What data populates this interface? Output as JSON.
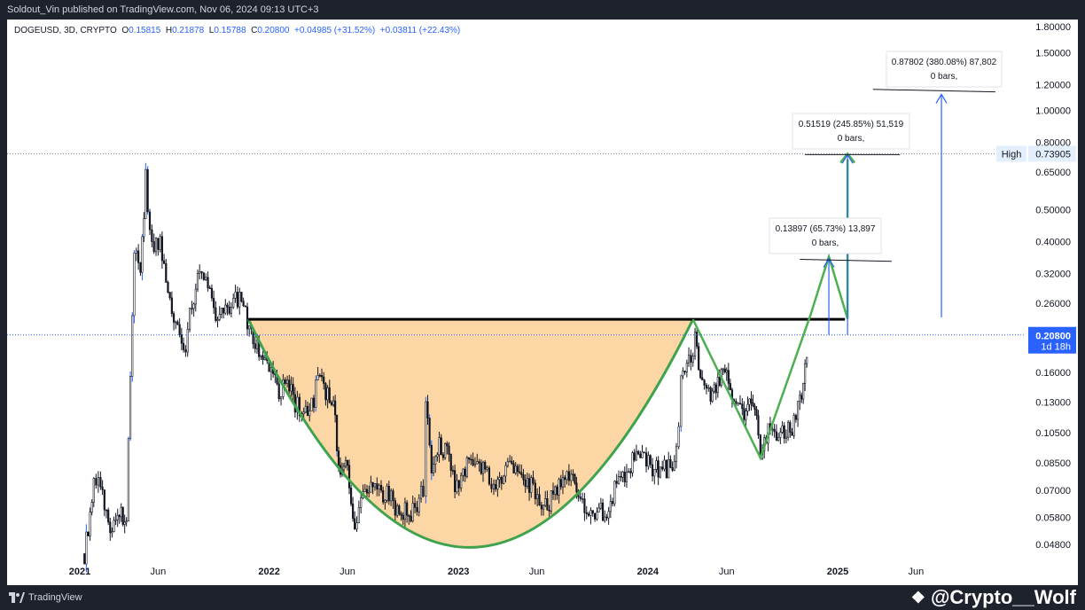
{
  "header": {
    "publish_line": "Soldout_Vin published on TradingView.com, Nov 06, 2024 09:13 UTC+3"
  },
  "legend": {
    "symbol": "DOGEUSD, 3D, CRYPTO",
    "open_label": "O",
    "open": "0.15815",
    "high_label": "H",
    "high": "0.21878",
    "low_label": "L",
    "low": "0.15788",
    "close_label": "C",
    "close": "0.20800",
    "change": "+0.04985 (+31.52%)",
    "change2": "+0.03811 (+22.43%)"
  },
  "footer": {
    "logo_text": "TradingView",
    "watermark": "@Crypto__Wolf"
  },
  "colors": {
    "candle": "#131722",
    "wick_blue": "#2962ff",
    "cup_fill": "#fccf95",
    "cup_line": "#3fa34d",
    "path_line": "#4caf50",
    "arrow_blue": "#2962ff",
    "resistance": "#000000",
    "price_tag": "#2962ff"
  },
  "chart_data": {
    "type": "candlestick",
    "symbol": "DOGEUSD",
    "timeframe": "3D",
    "y_scale": "log",
    "ylim": [
      0.042,
      1.9
    ],
    "y_ticks": [
      "1.80000",
      "1.50000",
      "1.20000",
      "1.00000",
      "0.80000",
      "0.65000",
      "0.50000",
      "0.40000",
      "0.32000",
      "0.26000",
      "0.20800",
      "0.16000",
      "0.13000",
      "0.10500",
      "0.08500",
      "0.07000",
      "0.05800",
      "0.04800"
    ],
    "y_tick_values": [
      1.8,
      1.5,
      1.2,
      1.0,
      0.8,
      0.65,
      0.5,
      0.4,
      0.32,
      0.26,
      0.208,
      0.16,
      0.13,
      0.105,
      0.085,
      0.07,
      0.058,
      0.048
    ],
    "x_ticks": [
      "2021",
      "Jun",
      "2022",
      "Jun",
      "2023",
      "Jun",
      "2024",
      "Jun",
      "2025",
      "Jun"
    ],
    "x_tick_dates": [
      "2021-01-01",
      "2021-06-01",
      "2022-01-01",
      "2022-06-01",
      "2023-01-01",
      "2023-06-01",
      "2024-01-01",
      "2024-06-01",
      "2025-01-01",
      "2025-06-01"
    ],
    "last_price": "0.20800",
    "countdown": "1d 18h",
    "high_label": "High",
    "high_value": "0.73905",
    "high_price": 0.73905,
    "resistance_price": 0.232,
    "cup_bottom_price": 0.047,
    "series_close": [
      [
        "2021-01-10",
        0.045
      ],
      [
        "2021-01-28",
        0.072
      ],
      [
        "2021-02-10",
        0.075
      ],
      [
        "2021-02-25",
        0.055
      ],
      [
        "2021-03-15",
        0.058
      ],
      [
        "2021-04-01",
        0.06
      ],
      [
        "2021-04-16",
        0.38
      ],
      [
        "2021-04-28",
        0.33
      ],
      [
        "2021-05-08",
        0.62
      ],
      [
        "2021-05-20",
        0.38
      ],
      [
        "2021-06-05",
        0.39
      ],
      [
        "2021-06-20",
        0.27
      ],
      [
        "2021-07-05",
        0.22
      ],
      [
        "2021-07-20",
        0.18
      ],
      [
        "2021-08-05",
        0.26
      ],
      [
        "2021-08-20",
        0.32
      ],
      [
        "2021-09-05",
        0.3
      ],
      [
        "2021-09-20",
        0.22
      ],
      [
        "2021-10-05",
        0.24
      ],
      [
        "2021-10-20",
        0.26
      ],
      [
        "2021-11-05",
        0.27
      ],
      [
        "2021-11-20",
        0.23
      ],
      [
        "2021-12-05",
        0.2
      ],
      [
        "2021-12-20",
        0.17
      ],
      [
        "2022-01-05",
        0.17
      ],
      [
        "2022-01-20",
        0.14
      ],
      [
        "2022-02-05",
        0.15
      ],
      [
        "2022-02-20",
        0.13
      ],
      [
        "2022-03-05",
        0.12
      ],
      [
        "2022-03-20",
        0.12
      ],
      [
        "2022-04-05",
        0.15
      ],
      [
        "2022-04-20",
        0.14
      ],
      [
        "2022-05-05",
        0.13
      ],
      [
        "2022-05-15",
        0.085
      ],
      [
        "2022-06-01",
        0.08
      ],
      [
        "2022-06-15",
        0.055
      ],
      [
        "2022-07-01",
        0.067
      ],
      [
        "2022-07-20",
        0.07
      ],
      [
        "2022-08-05",
        0.069
      ],
      [
        "2022-08-20",
        0.067
      ],
      [
        "2022-09-05",
        0.062
      ],
      [
        "2022-09-20",
        0.061
      ],
      [
        "2022-10-05",
        0.06
      ],
      [
        "2022-10-25",
        0.07
      ],
      [
        "2022-10-30",
        0.14
      ],
      [
        "2022-11-10",
        0.085
      ],
      [
        "2022-11-25",
        0.095
      ],
      [
        "2022-12-10",
        0.09
      ],
      [
        "2022-12-25",
        0.072
      ],
      [
        "2023-01-10",
        0.08
      ],
      [
        "2023-01-25",
        0.09
      ],
      [
        "2023-02-10",
        0.085
      ],
      [
        "2023-02-25",
        0.08
      ],
      [
        "2023-03-10",
        0.07
      ],
      [
        "2023-03-25",
        0.075
      ],
      [
        "2023-04-10",
        0.085
      ],
      [
        "2023-04-25",
        0.08
      ],
      [
        "2023-05-10",
        0.073
      ],
      [
        "2023-05-25",
        0.072
      ],
      [
        "2023-06-10",
        0.062
      ],
      [
        "2023-06-25",
        0.065
      ],
      [
        "2023-07-10",
        0.07
      ],
      [
        "2023-07-25",
        0.078
      ],
      [
        "2023-08-10",
        0.075
      ],
      [
        "2023-08-20",
        0.063
      ],
      [
        "2023-09-05",
        0.063
      ],
      [
        "2023-09-25",
        0.061
      ],
      [
        "2023-10-10",
        0.06
      ],
      [
        "2023-10-25",
        0.068
      ],
      [
        "2023-11-10",
        0.078
      ],
      [
        "2023-11-25",
        0.08
      ],
      [
        "2023-12-10",
        0.096
      ],
      [
        "2023-12-25",
        0.09
      ],
      [
        "2024-01-10",
        0.082
      ],
      [
        "2024-01-25",
        0.08
      ],
      [
        "2024-02-10",
        0.082
      ],
      [
        "2024-02-25",
        0.09
      ],
      [
        "2024-03-05",
        0.15
      ],
      [
        "2024-03-20",
        0.17
      ],
      [
        "2024-04-01",
        0.2
      ],
      [
        "2024-04-15",
        0.15
      ],
      [
        "2024-05-01",
        0.13
      ],
      [
        "2024-05-15",
        0.15
      ],
      [
        "2024-06-01",
        0.16
      ],
      [
        "2024-06-15",
        0.13
      ],
      [
        "2024-07-01",
        0.12
      ],
      [
        "2024-07-15",
        0.13
      ],
      [
        "2024-08-01",
        0.11
      ],
      [
        "2024-08-05",
        0.09
      ],
      [
        "2024-08-20",
        0.105
      ],
      [
        "2024-09-05",
        0.1
      ],
      [
        "2024-09-20",
        0.108
      ],
      [
        "2024-10-05",
        0.11
      ],
      [
        "2024-10-20",
        0.13
      ],
      [
        "2024-10-30",
        0.16
      ],
      [
        "2024-11-06",
        0.208
      ]
    ],
    "projections": [
      {
        "text1": "0.13897 (65.73%) 13,897",
        "text2": "0 bars,"
      },
      {
        "text1": "0.51519 (245.85%) 51,519",
        "text2": "0 bars,"
      },
      {
        "text1": "0.87802 (380.08%) 87,802",
        "text2": "0 bars,"
      }
    ]
  }
}
